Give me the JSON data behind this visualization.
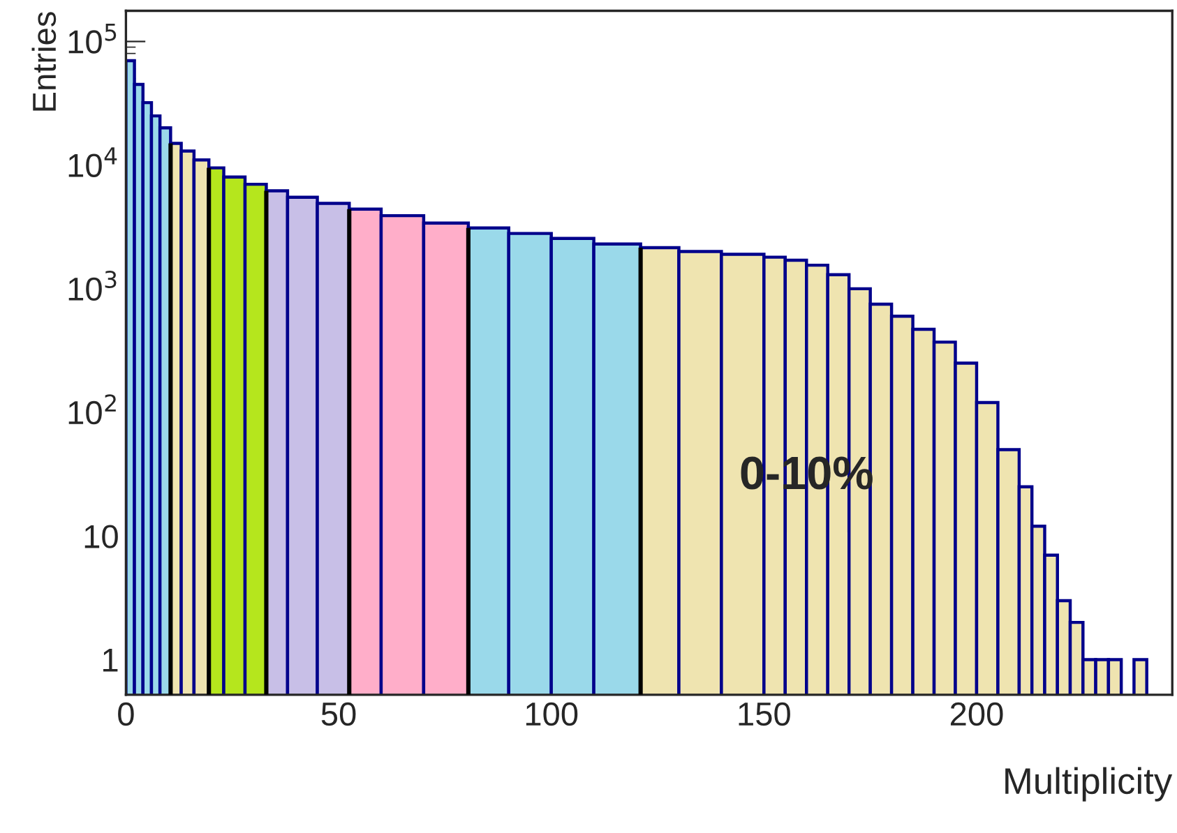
{
  "chart_data": {
    "type": "histogram",
    "xlabel": "Multiplicity",
    "ylabel": "Entries",
    "log": true,
    "grid": false,
    "bins": [
      0,
      2,
      4,
      6,
      8,
      10.5,
      13,
      16,
      19.5,
      23,
      28,
      33,
      38,
      45,
      52.5,
      60,
      70,
      80.5,
      90,
      100,
      110,
      121,
      130,
      140,
      150,
      155,
      160,
      165,
      170,
      175,
      180,
      185,
      190,
      195,
      200,
      205,
      210,
      213,
      216,
      219,
      222,
      225,
      228,
      231,
      234,
      237,
      240
    ],
    "values": [
      70000,
      45000,
      32000,
      25000,
      20000,
      15000,
      13000,
      11000,
      9500,
      8000,
      7000,
      6200,
      5500,
      4900,
      4400,
      3900,
      3400,
      3100,
      2800,
      2550,
      2300,
      2150,
      2000,
      1900,
      1800,
      1700,
      1550,
      1300,
      1000,
      750,
      600,
      470,
      370,
      250,
      120,
      50,
      25,
      12,
      7,
      3,
      2,
      1,
      1,
      1,
      null,
      1
    ],
    "colors": [
      "#9ad9ea",
      "#9ad9ea",
      "#9ad9ea",
      "#9ad9ea",
      "#9ad9ea",
      "#efe4b0",
      "#efe4b0",
      "#efe4b0",
      "#b5e61d",
      "#b5e61d",
      "#b5e61d",
      "#c8bfe7",
      "#c8bfe7",
      "#c8bfe7",
      "#ffaec9",
      "#ffaec9",
      "#ffaec9",
      "#9ad9ea",
      "#9ad9ea",
      "#9ad9ea",
      "#9ad9ea",
      "#efe4b0",
      "#efe4b0",
      "#efe4b0",
      "#efe4b0",
      "#efe4b0",
      "#efe4b0",
      "#efe4b0",
      "#efe4b0",
      "#efe4b0",
      "#efe4b0",
      "#efe4b0",
      "#efe4b0",
      "#efe4b0",
      "#efe4b0",
      "#efe4b0",
      "#efe4b0",
      "#efe4b0",
      "#efe4b0",
      "#efe4b0",
      "#efe4b0",
      "#efe4b0",
      "#efe4b0",
      "#efe4b0",
      "#efe4b0",
      "#efe4b0"
    ],
    "color": "#00008b",
    "xlim": [
      0,
      246
    ],
    "ylim": [
      0.52,
      177000
    ],
    "xticks": [
      0,
      50,
      100,
      150,
      200
    ],
    "yticks": [
      {
        "value": 1,
        "label": "1"
      },
      {
        "value": 10,
        "label": "10"
      },
      {
        "value": 100,
        "label": "10$^{2}$"
      },
      {
        "value": 1000,
        "label": "10$^{3}$"
      },
      {
        "value": 10000,
        "label": "10$^{4}$"
      },
      {
        "value": 100000,
        "label": "10$^{5}$"
      }
    ],
    "ref_lines": [
      {
        "axis": "x",
        "value": 10.5,
        "color": "#000000"
      },
      {
        "axis": "x",
        "value": 19.5,
        "color": "#000000"
      },
      {
        "axis": "x",
        "value": 33,
        "color": "#000000"
      },
      {
        "axis": "x",
        "value": 52.5,
        "color": "#000000"
      },
      {
        "axis": "x",
        "value": 80.5,
        "color": "#000000"
      },
      {
        "axis": "x",
        "value": 121,
        "color": "#000000"
      }
    ],
    "annotations": [
      {
        "text": "0-10%",
        "x": 160,
        "y": 30
      }
    ]
  }
}
